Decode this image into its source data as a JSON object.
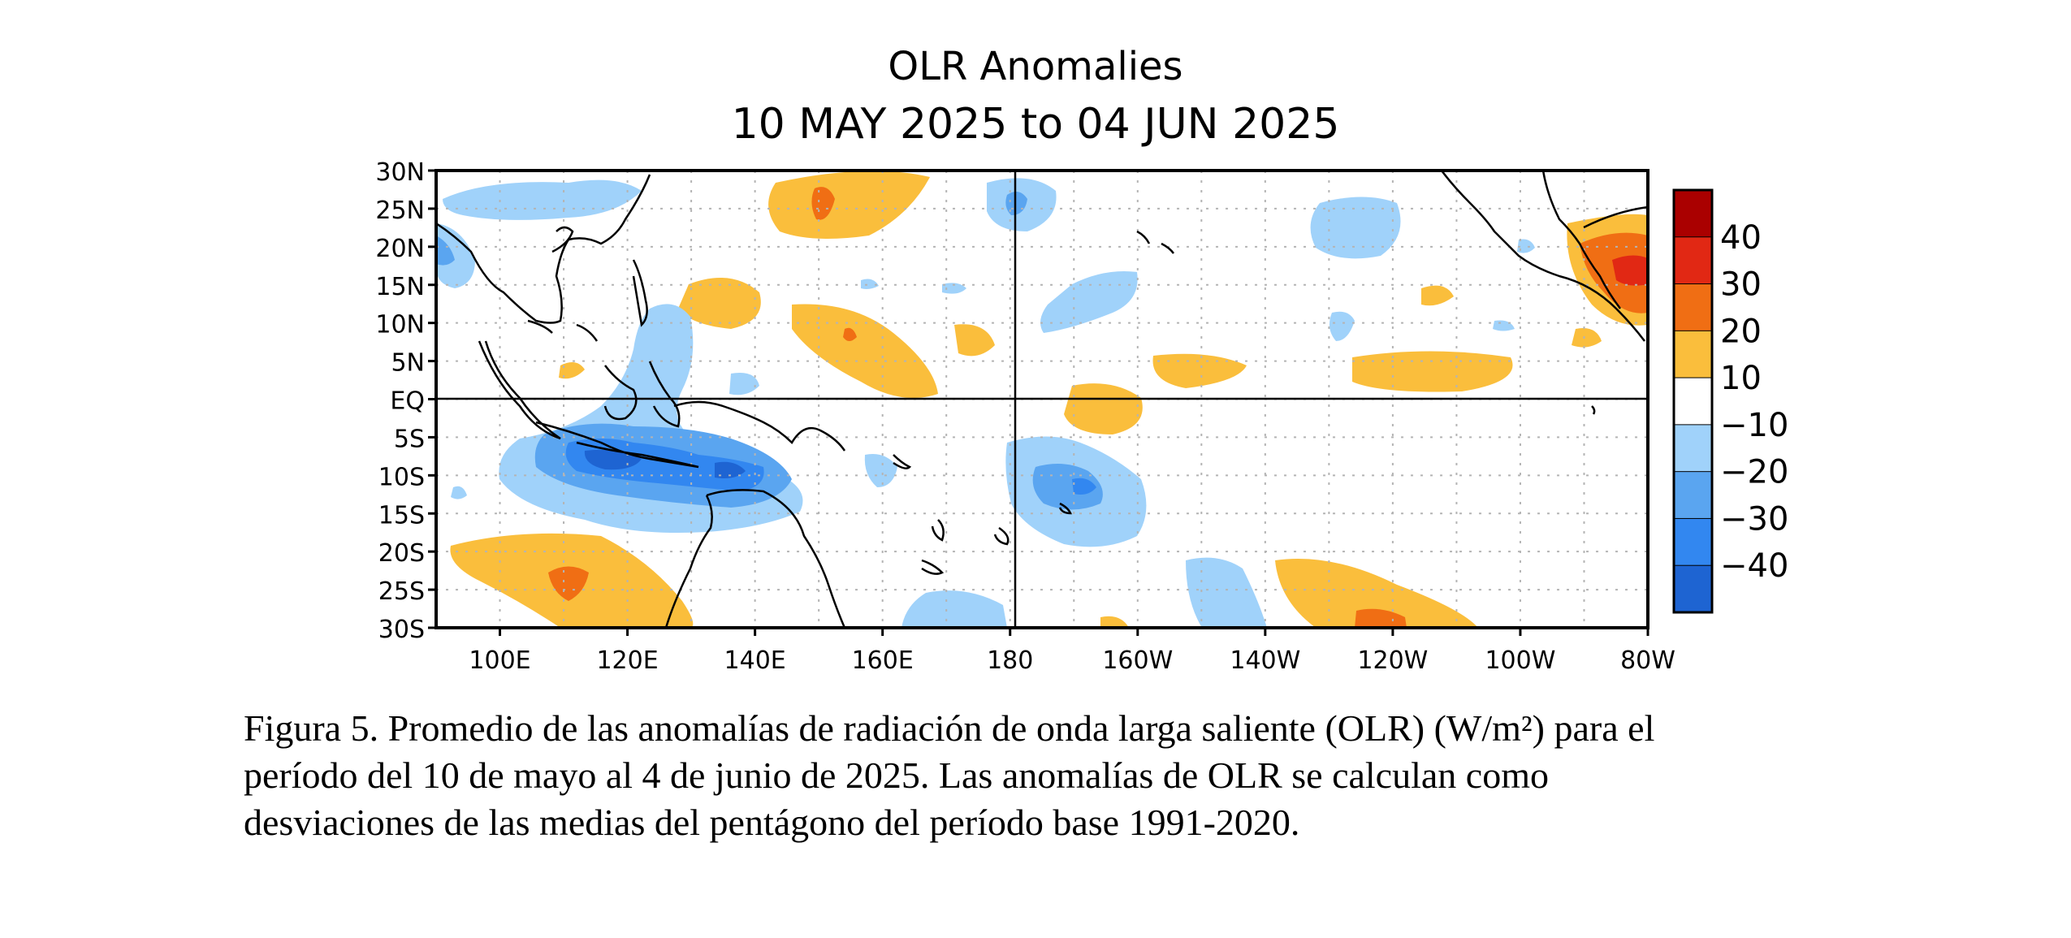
{
  "figure": {
    "title_line1": "OLR Anomalies",
    "title_line2": "10 MAY 2025 to 04 JUN 2025"
  },
  "map": {
    "lat_labels": [
      "30N",
      "25N",
      "20N",
      "15N",
      "10N",
      "5N",
      "EQ",
      "5S",
      "10S",
      "15S",
      "20S",
      "25S",
      "30S"
    ],
    "lon_labels": [
      "100E",
      "120E",
      "140E",
      "160E",
      "180",
      "160W",
      "140W",
      "120W",
      "100W",
      "80W"
    ],
    "lat_range": [
      -30,
      30
    ],
    "lon_range": [
      90,
      280
    ],
    "colors": {
      "neg40": "#1e64d2",
      "neg30": "#3287f0",
      "neg20": "#5aa5f0",
      "neg10": "#a0d2fa",
      "pos10": "#fabe3c",
      "pos20": "#f06e14",
      "pos30": "#e12814",
      "pos40": "#aa0000"
    }
  },
  "colorbar": {
    "labels": [
      "40",
      "30",
      "20",
      "10",
      "−10",
      "−20",
      "−30",
      "−40"
    ],
    "bins": [
      "#aa0000",
      "#e12814",
      "#f06e14",
      "#fabe3c",
      "#ffffff",
      "#a0d2fa",
      "#5aa5f0",
      "#3287f0",
      "#1e64d2"
    ]
  },
  "caption": {
    "line1": "Figura 5. Promedio de las anomalías de radiación de onda larga saliente (OLR) (W/m²) para el",
    "line2": "período del 10 de mayo al 4 de junio de 2025. Las anomalías de OLR se calculan como",
    "line3": "desviaciones de las medias del pentágono del período base 1991-2020."
  }
}
